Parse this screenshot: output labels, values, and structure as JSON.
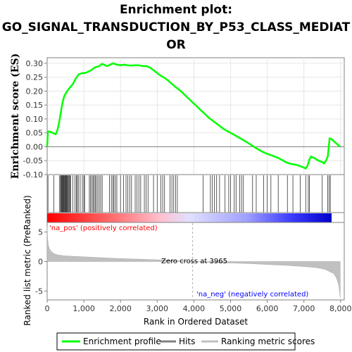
{
  "chart_data": {
    "type": "line",
    "title_lines": [
      "Enrichment plot:",
      "GO_SIGNAL_TRANSDUCTION_BY_P53_CLASS_MEDIAT",
      "OR"
    ],
    "enrichment_panel": {
      "ylabel": "Enrichment score (ES)",
      "ylim": [
        -0.1,
        0.32
      ],
      "yticks": [
        "0.30",
        "0.25",
        "0.20",
        "0.15",
        "0.10",
        "0.05",
        "0.00",
        "-0.05",
        "-0.10"
      ],
      "ytick_values": [
        0.3,
        0.25,
        0.2,
        0.15,
        0.1,
        0.05,
        0.0,
        -0.05,
        -0.1
      ],
      "grid": true,
      "line_color": "#00ff00",
      "series": [
        {
          "name": "Enrichment profile",
          "x": [
            0,
            20,
            60,
            150,
            230,
            280,
            330,
            380,
            420,
            460,
            520,
            600,
            700,
            780,
            860,
            960,
            1040,
            1120,
            1200,
            1300,
            1420,
            1500,
            1560,
            1640,
            1720,
            1800,
            1900,
            2000,
            2100,
            2200,
            2300,
            2400,
            2500,
            2600,
            2700,
            2800,
            2900,
            3000,
            3100,
            3200,
            3300,
            3400,
            3500,
            3600,
            3700,
            3800,
            3900,
            4000,
            4100,
            4200,
            4300,
            4400,
            4500,
            4600,
            4700,
            4800,
            4900,
            5000,
            5100,
            5200,
            5300,
            5400,
            5500,
            5600,
            5700,
            5800,
            5900,
            6000,
            6100,
            6200,
            6300,
            6400,
            6500,
            6600,
            6700,
            6800,
            6900,
            7000,
            7050,
            7100,
            7150,
            7200,
            7300,
            7400,
            7500,
            7550,
            7600,
            7650,
            7700,
            7750,
            7800,
            7900,
            7990
          ],
          "y": [
            0.0,
            0.055,
            0.055,
            0.05,
            0.045,
            0.06,
            0.09,
            0.13,
            0.16,
            0.18,
            0.195,
            0.21,
            0.225,
            0.245,
            0.26,
            0.265,
            0.265,
            0.27,
            0.275,
            0.285,
            0.29,
            0.298,
            0.294,
            0.29,
            0.295,
            0.3,
            0.295,
            0.293,
            0.295,
            0.293,
            0.292,
            0.293,
            0.293,
            0.29,
            0.29,
            0.285,
            0.275,
            0.265,
            0.255,
            0.248,
            0.238,
            0.226,
            0.215,
            0.205,
            0.193,
            0.18,
            0.168,
            0.155,
            0.143,
            0.13,
            0.118,
            0.105,
            0.095,
            0.085,
            0.075,
            0.065,
            0.057,
            0.05,
            0.043,
            0.035,
            0.028,
            0.02,
            0.012,
            0.003,
            -0.005,
            -0.013,
            -0.02,
            -0.025,
            -0.03,
            -0.035,
            -0.04,
            -0.047,
            -0.055,
            -0.06,
            -0.063,
            -0.065,
            -0.07,
            -0.075,
            -0.078,
            -0.068,
            -0.045,
            -0.035,
            -0.042,
            -0.05,
            -0.055,
            -0.06,
            -0.05,
            -0.035,
            0.03,
            0.028,
            0.022,
            0.01,
            0.0
          ]
        }
      ]
    },
    "hits_panel": {
      "hit_positions": [
        22,
        180,
        340,
        365,
        380,
        395,
        410,
        425,
        440,
        455,
        470,
        485,
        500,
        515,
        530,
        545,
        560,
        580,
        600,
        620,
        640,
        700,
        760,
        800,
        820,
        850,
        900,
        960,
        1000,
        1020,
        1150,
        1180,
        1220,
        1250,
        1280,
        1310,
        1340,
        1380,
        1420,
        1460,
        1500,
        1700,
        1750,
        1790,
        1820,
        1860,
        1900,
        2000,
        2080,
        2150,
        2200,
        2250,
        2300,
        2400,
        2450,
        2500,
        2550,
        2650,
        2700,
        2750,
        2900,
        3000,
        3100,
        3150,
        3200,
        3350,
        3400,
        3450,
        3500,
        3550,
        4250,
        4450,
        4500,
        4560,
        4620,
        4700,
        4850,
        4950,
        5000,
        5100,
        5150,
        5250,
        5300,
        5350,
        5600,
        5700,
        5900,
        6000,
        6100,
        6300,
        6550,
        6700,
        6900,
        7050,
        7120,
        7150,
        7500,
        7650,
        7690,
        7720
      ],
      "ranking_bar": {
        "gradient_stops": [
          "#ff0000",
          "#ff6060",
          "#ffc0d0",
          "#e0e0ff",
          "#a0a0ff",
          "#4040ff",
          "#0000cc"
        ]
      }
    },
    "ranked_metric_panel": {
      "ylabel": "Ranked list metric (PreRanked)",
      "ylim": [
        -6.5,
        6.5
      ],
      "yticks": [
        "5",
        "0",
        "-5"
      ],
      "ytick_values": [
        5,
        0,
        -5
      ],
      "fill_color": "#c0c0c0",
      "profile_x": [
        0,
        10,
        30,
        60,
        100,
        150,
        200,
        300,
        500,
        1000,
        1500,
        2000,
        2500,
        3000,
        3500,
        3965,
        4500,
        5000,
        5500,
        6000,
        6500,
        7000,
        7300,
        7500,
        7600,
        7700,
        7800,
        7850,
        7900,
        7950,
        7990
      ],
      "profile_y": [
        6.0,
        4.0,
        2.8,
        2.2,
        1.8,
        1.5,
        1.3,
        1.1,
        0.95,
        0.8,
        0.65,
        0.5,
        0.4,
        0.3,
        0.15,
        0.0,
        -0.15,
        -0.25,
        -0.35,
        -0.5,
        -0.65,
        -0.85,
        -1.0,
        -1.2,
        -1.4,
        -1.7,
        -2.0,
        -2.4,
        -3.0,
        -4.0,
        -6.2
      ],
      "zero_cross_label": "Zero cross at 3965",
      "zero_cross_x": 3965,
      "pos_label": "'na_pos' (positively correlated)",
      "neg_label": "'na_neg' (negatively correlated)",
      "pos_color": "#ff0000",
      "neg_color": "#0000ff"
    },
    "xaxis": {
      "xlabel": "Rank in Ordered Dataset",
      "xlim": [
        0,
        8100
      ],
      "xticks": [
        "0",
        "1,000",
        "2,000",
        "3,000",
        "4,000",
        "5,000",
        "6,000",
        "7,000",
        "8,000"
      ],
      "xtick_values": [
        0,
        1000,
        2000,
        3000,
        4000,
        5000,
        6000,
        7000,
        8000
      ]
    },
    "legend": {
      "placement": "bottom",
      "items": [
        {
          "label": "Enrichment profile",
          "color": "#00ff00"
        },
        {
          "label": "Hits",
          "color": "#808080"
        },
        {
          "label": "Ranking metric scores",
          "color": "#c0c0c0"
        }
      ]
    }
  }
}
